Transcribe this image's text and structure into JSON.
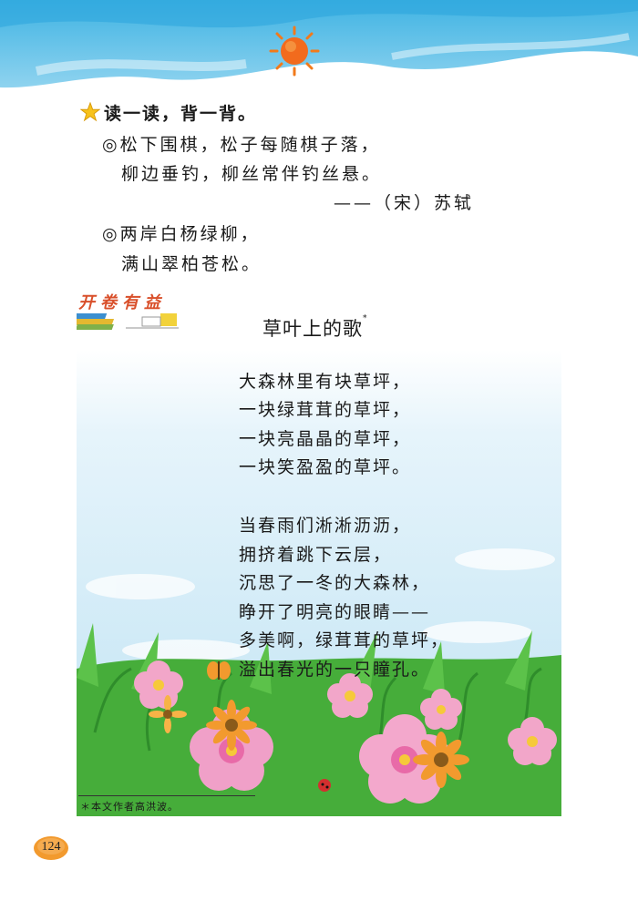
{
  "section": {
    "heading": "读一读，背一背。",
    "icon": "star-icon"
  },
  "couplets": [
    {
      "bullet": "◎",
      "line1": "松下围棋，松子每随棋子落，",
      "line2": "柳边垂钓，柳丝常伴钓丝悬。",
      "attribution": "——（宋）苏轼"
    },
    {
      "bullet": "◎",
      "line1": "两岸白杨绿柳，",
      "line2": "满山翠柏苍松。"
    }
  ],
  "badge": {
    "label": "开卷有益"
  },
  "poem": {
    "title": "草叶上的歌",
    "title_mark": "*",
    "stanza1": [
      "大森林里有块草坪，",
      "一块绿茸茸的草坪，",
      "一块亮晶晶的草坪，",
      "一块笑盈盈的草坪。"
    ],
    "stanza2": [
      "当春雨们淅淅沥沥，",
      "拥挤着跳下云层，",
      "沉思了一冬的大森林，",
      "睁开了明亮的眼睛——",
      "多美啊，绿茸茸的草坪，",
      "溢出春光的一只瞳孔。"
    ]
  },
  "footnote": "＊本文作者高洪波。",
  "page_number": "124",
  "colors": {
    "sky_top": "#5ec3e8",
    "sky_light": "#dff1fb",
    "grass": "#3aa53a",
    "badge_red": "#d9502b",
    "page_badge": "#f29a2e"
  }
}
